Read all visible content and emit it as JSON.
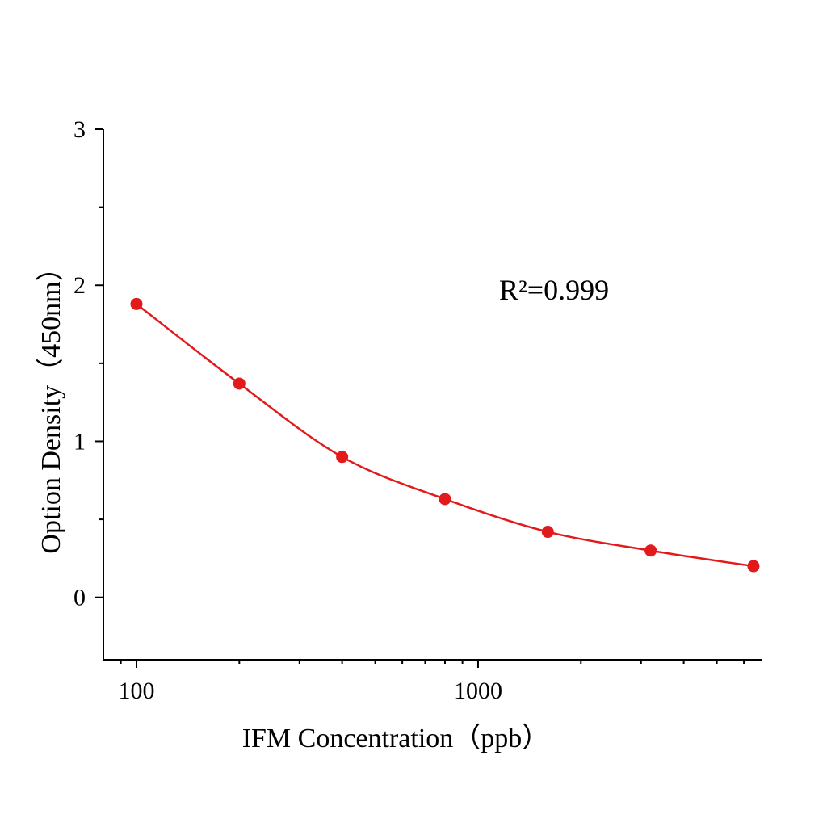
{
  "chart_data": {
    "type": "scatter",
    "fit_line": true,
    "annotation": "R²=0.999",
    "x_label": "IFM Concentration（ppb）",
    "y_label": "Option Density（450nm）",
    "x": [
      100,
      200,
      400,
      800,
      1600,
      3200,
      6400
    ],
    "values": [
      1.88,
      1.37,
      0.9,
      0.63,
      0.42,
      0.3,
      0.2
    ],
    "color": "#e31a1c",
    "xscale": "log",
    "xlim": [
      80,
      6760
    ],
    "xticks": [
      100,
      1000
    ],
    "xminorticks": [
      90,
      200,
      300,
      400,
      500,
      600,
      700,
      800,
      900,
      2000,
      3000,
      4000,
      5000,
      6000
    ],
    "ylim": [
      -0.4,
      3
    ],
    "yticks": [
      0,
      1,
      2,
      3
    ],
    "yminorticks": [
      0.5,
      1.5,
      2.5
    ],
    "grid": false
  }
}
